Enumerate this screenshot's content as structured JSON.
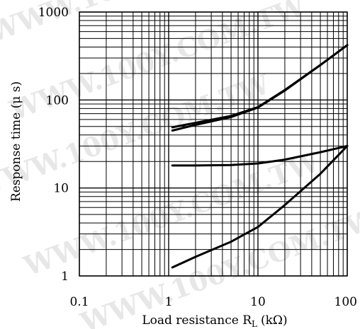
{
  "chart_data": {
    "type": "line",
    "title": "",
    "xlabel": "Load resistance R",
    "xlabel_subscript": "L",
    "xlabel_unit": "(kΩ)",
    "ylabel": "Response time (μ s)",
    "x_scale": "log",
    "y_scale": "log",
    "xlim": [
      0.1,
      100
    ],
    "ylim": [
      1,
      1000
    ],
    "x_ticks": [
      0.1,
      1,
      10,
      100
    ],
    "x_tick_labels": [
      "0.1",
      "1",
      "10",
      "100"
    ],
    "y_ticks": [
      1,
      10,
      100,
      1000
    ],
    "y_tick_labels": [
      "1",
      "10",
      "100",
      "1000"
    ],
    "grid": true,
    "legend": "none",
    "watermark": "WWW.100Y.COM.TW",
    "series": [
      {
        "x": [
          1.1,
          2,
          5,
          10,
          20,
          50,
          100
        ],
        "y": [
          49,
          55,
          66,
          83,
          130,
          250,
          420
        ]
      },
      {
        "x": [
          1.1,
          2,
          5,
          10,
          20,
          50,
          100
        ],
        "y": [
          45,
          52,
          64,
          82,
          128,
          250,
          420
        ]
      },
      {
        "x": [
          1.1,
          2,
          5,
          10,
          20,
          50,
          100
        ],
        "y": [
          18,
          18,
          18.2,
          19,
          21,
          25.5,
          30
        ]
      },
      {
        "x": [
          1.1,
          2,
          5,
          10,
          20,
          50,
          100
        ],
        "y": [
          1.25,
          1.65,
          2.45,
          3.6,
          6.4,
          14.5,
          30
        ]
      }
    ]
  },
  "colors": {
    "grid": "#000000",
    "line": "#000000",
    "watermark": "#e7e7e7"
  }
}
